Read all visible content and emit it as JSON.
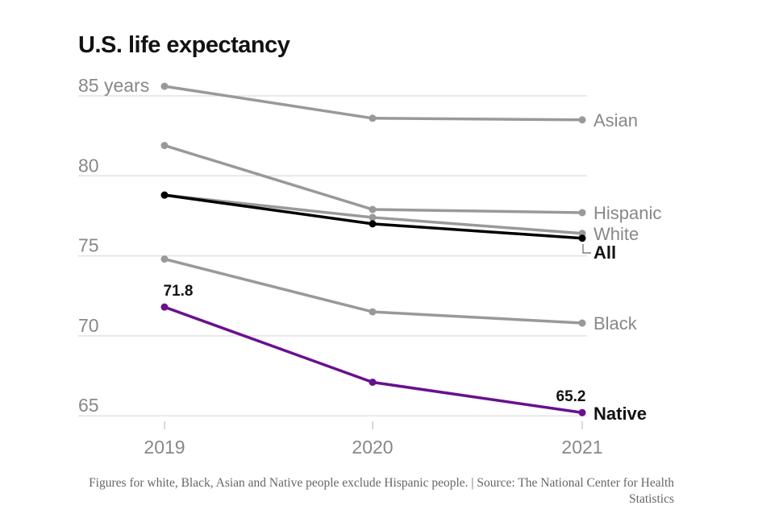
{
  "chart_data": {
    "type": "line",
    "title": "U.S. life expectancy",
    "x": [
      "2019",
      "2020",
      "2021"
    ],
    "ylim": [
      63.5,
      86
    ],
    "yticks": [
      85,
      80,
      75,
      70,
      65
    ],
    "ytick_labels": [
      "85 years",
      "80",
      "75",
      "70",
      "65"
    ],
    "grid": true,
    "series": [
      {
        "name": "Asian",
        "values": [
          85.6,
          83.6,
          83.5
        ],
        "color": "#999999",
        "highlight": false
      },
      {
        "name": "Hispanic",
        "values": [
          81.9,
          77.9,
          77.7
        ],
        "color": "#999999",
        "highlight": false
      },
      {
        "name": "White",
        "values": [
          78.8,
          77.4,
          76.4
        ],
        "color": "#999999",
        "highlight": false
      },
      {
        "name": "All",
        "values": [
          78.8,
          77.0,
          76.1
        ],
        "color": "#000000",
        "highlight": true
      },
      {
        "name": "Black",
        "values": [
          74.8,
          71.5,
          70.8
        ],
        "color": "#999999",
        "highlight": false
      },
      {
        "name": "Native",
        "values": [
          71.8,
          67.1,
          65.2
        ],
        "color": "#6a0f8e",
        "highlight": true
      }
    ],
    "annotations": [
      {
        "series": "Native",
        "x": "2019",
        "text": "71.8"
      },
      {
        "series": "Native",
        "x": "2021",
        "text": "65.2"
      }
    ]
  },
  "note": "Figures for white, Black, Asian and Native people exclude Hispanic people. | Source: The National Center for Health Statistics"
}
